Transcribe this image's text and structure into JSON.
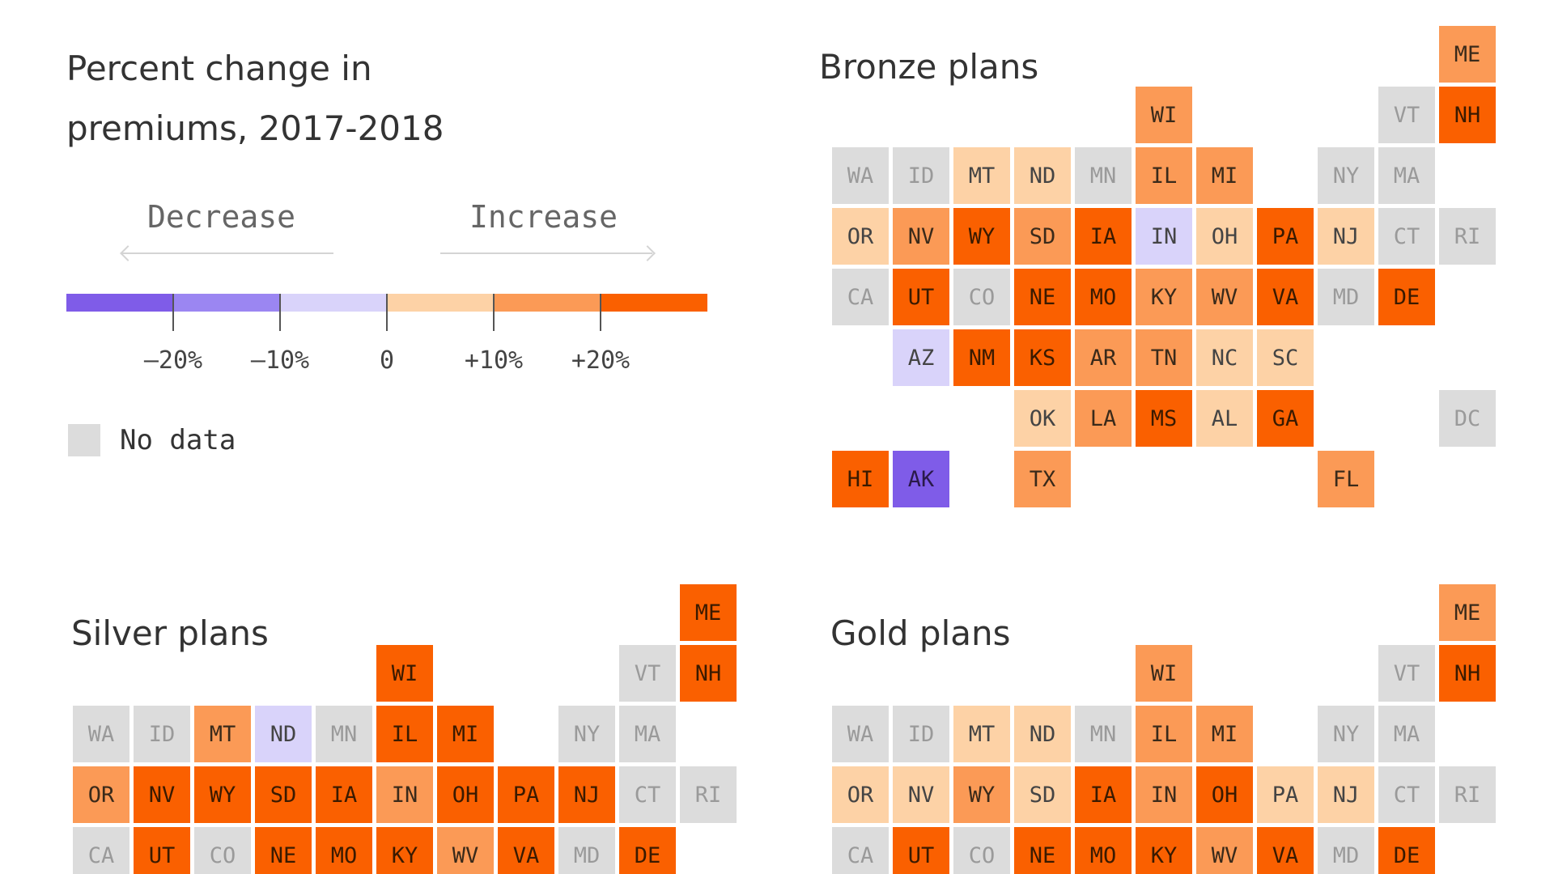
{
  "title": "Percent change in premiums, 2017-2018",
  "legend": {
    "decrease_label": "Decrease",
    "increase_label": "Increase",
    "ticks": [
      "–20%",
      "–10%",
      "0",
      "+10%",
      "+20%"
    ],
    "bins": [
      {
        "color": "#7f5ce8"
      },
      {
        "color": "#9b86f2"
      },
      {
        "color": "#d9d3fa"
      },
      {
        "color": "#fdd2a6"
      },
      {
        "color": "#fb9a56"
      },
      {
        "color": "#fa6000"
      }
    ],
    "no_data_label": "No data",
    "no_data_color": "#dcdcdc"
  },
  "maps": [
    {
      "name": "Bronze plans",
      "states": [
        {
          "code": "ME",
          "row": 0,
          "col": 10,
          "bin": 5
        },
        {
          "code": "WI",
          "row": 1,
          "col": 5,
          "bin": 5
        },
        {
          "code": "VT",
          "row": 1,
          "col": 9,
          "bin": null
        },
        {
          "code": "NH",
          "row": 1,
          "col": 10,
          "bin": 6
        },
        {
          "code": "WA",
          "row": 2,
          "col": 0,
          "bin": null
        },
        {
          "code": "ID",
          "row": 2,
          "col": 1,
          "bin": null
        },
        {
          "code": "MT",
          "row": 2,
          "col": 2,
          "bin": 4
        },
        {
          "code": "ND",
          "row": 2,
          "col": 3,
          "bin": 4
        },
        {
          "code": "MN",
          "row": 2,
          "col": 4,
          "bin": null
        },
        {
          "code": "IL",
          "row": 2,
          "col": 5,
          "bin": 5
        },
        {
          "code": "MI",
          "row": 2,
          "col": 6,
          "bin": 5
        },
        {
          "code": "NY",
          "row": 2,
          "col": 8,
          "bin": null
        },
        {
          "code": "MA",
          "row": 2,
          "col": 9,
          "bin": null
        },
        {
          "code": "OR",
          "row": 3,
          "col": 0,
          "bin": 4
        },
        {
          "code": "NV",
          "row": 3,
          "col": 1,
          "bin": 5
        },
        {
          "code": "WY",
          "row": 3,
          "col": 2,
          "bin": 6
        },
        {
          "code": "SD",
          "row": 3,
          "col": 3,
          "bin": 5
        },
        {
          "code": "IA",
          "row": 3,
          "col": 4,
          "bin": 6
        },
        {
          "code": "IN",
          "row": 3,
          "col": 5,
          "bin": 3
        },
        {
          "code": "OH",
          "row": 3,
          "col": 6,
          "bin": 4
        },
        {
          "code": "PA",
          "row": 3,
          "col": 7,
          "bin": 6
        },
        {
          "code": "NJ",
          "row": 3,
          "col": 8,
          "bin": 4
        },
        {
          "code": "CT",
          "row": 3,
          "col": 9,
          "bin": null
        },
        {
          "code": "RI",
          "row": 3,
          "col": 10,
          "bin": null
        },
        {
          "code": "CA",
          "row": 4,
          "col": 0,
          "bin": null
        },
        {
          "code": "UT",
          "row": 4,
          "col": 1,
          "bin": 6
        },
        {
          "code": "CO",
          "row": 4,
          "col": 2,
          "bin": null
        },
        {
          "code": "NE",
          "row": 4,
          "col": 3,
          "bin": 6
        },
        {
          "code": "MO",
          "row": 4,
          "col": 4,
          "bin": 6
        },
        {
          "code": "KY",
          "row": 4,
          "col": 5,
          "bin": 5
        },
        {
          "code": "WV",
          "row": 4,
          "col": 6,
          "bin": 5
        },
        {
          "code": "VA",
          "row": 4,
          "col": 7,
          "bin": 6
        },
        {
          "code": "MD",
          "row": 4,
          "col": 8,
          "bin": null
        },
        {
          "code": "DE",
          "row": 4,
          "col": 9,
          "bin": 6
        },
        {
          "code": "AZ",
          "row": 5,
          "col": 1,
          "bin": 3
        },
        {
          "code": "NM",
          "row": 5,
          "col": 2,
          "bin": 6
        },
        {
          "code": "KS",
          "row": 5,
          "col": 3,
          "bin": 6
        },
        {
          "code": "AR",
          "row": 5,
          "col": 4,
          "bin": 5
        },
        {
          "code": "TN",
          "row": 5,
          "col": 5,
          "bin": 5
        },
        {
          "code": "NC",
          "row": 5,
          "col": 6,
          "bin": 4
        },
        {
          "code": "SC",
          "row": 5,
          "col": 7,
          "bin": 4
        },
        {
          "code": "OK",
          "row": 6,
          "col": 3,
          "bin": 4
        },
        {
          "code": "LA",
          "row": 6,
          "col": 4,
          "bin": 5
        },
        {
          "code": "MS",
          "row": 6,
          "col": 5,
          "bin": 6
        },
        {
          "code": "AL",
          "row": 6,
          "col": 6,
          "bin": 4
        },
        {
          "code": "GA",
          "row": 6,
          "col": 7,
          "bin": 6
        },
        {
          "code": "DC",
          "row": 6,
          "col": 10,
          "bin": null
        },
        {
          "code": "HI",
          "row": 7,
          "col": 0,
          "bin": 6
        },
        {
          "code": "AK",
          "row": 7,
          "col": 1,
          "bin": 1
        },
        {
          "code": "TX",
          "row": 7,
          "col": 3,
          "bin": 5
        },
        {
          "code": "FL",
          "row": 7,
          "col": 8,
          "bin": 5
        }
      ]
    },
    {
      "name": "Silver plans",
      "states": [
        {
          "code": "ME",
          "row": 0,
          "col": 10,
          "bin": 6
        },
        {
          "code": "WI",
          "row": 1,
          "col": 5,
          "bin": 6
        },
        {
          "code": "VT",
          "row": 1,
          "col": 9,
          "bin": null
        },
        {
          "code": "NH",
          "row": 1,
          "col": 10,
          "bin": 6
        },
        {
          "code": "WA",
          "row": 2,
          "col": 0,
          "bin": null
        },
        {
          "code": "ID",
          "row": 2,
          "col": 1,
          "bin": null
        },
        {
          "code": "MT",
          "row": 2,
          "col": 2,
          "bin": 5
        },
        {
          "code": "ND",
          "row": 2,
          "col": 3,
          "bin": 3
        },
        {
          "code": "MN",
          "row": 2,
          "col": 4,
          "bin": null
        },
        {
          "code": "IL",
          "row": 2,
          "col": 5,
          "bin": 6
        },
        {
          "code": "MI",
          "row": 2,
          "col": 6,
          "bin": 6
        },
        {
          "code": "NY",
          "row": 2,
          "col": 8,
          "bin": null
        },
        {
          "code": "MA",
          "row": 2,
          "col": 9,
          "bin": null
        },
        {
          "code": "OR",
          "row": 3,
          "col": 0,
          "bin": 5
        },
        {
          "code": "NV",
          "row": 3,
          "col": 1,
          "bin": 6
        },
        {
          "code": "WY",
          "row": 3,
          "col": 2,
          "bin": 6
        },
        {
          "code": "SD",
          "row": 3,
          "col": 3,
          "bin": 6
        },
        {
          "code": "IA",
          "row": 3,
          "col": 4,
          "bin": 6
        },
        {
          "code": "IN",
          "row": 3,
          "col": 5,
          "bin": 5
        },
        {
          "code": "OH",
          "row": 3,
          "col": 6,
          "bin": 6
        },
        {
          "code": "PA",
          "row": 3,
          "col": 7,
          "bin": 6
        },
        {
          "code": "NJ",
          "row": 3,
          "col": 8,
          "bin": 6
        },
        {
          "code": "CT",
          "row": 3,
          "col": 9,
          "bin": null
        },
        {
          "code": "RI",
          "row": 3,
          "col": 10,
          "bin": null
        },
        {
          "code": "CA",
          "row": 4,
          "col": 0,
          "bin": null
        },
        {
          "code": "UT",
          "row": 4,
          "col": 1,
          "bin": 6
        },
        {
          "code": "CO",
          "row": 4,
          "col": 2,
          "bin": null
        },
        {
          "code": "NE",
          "row": 4,
          "col": 3,
          "bin": 6
        },
        {
          "code": "MO",
          "row": 4,
          "col": 4,
          "bin": 6
        },
        {
          "code": "KY",
          "row": 4,
          "col": 5,
          "bin": 6
        },
        {
          "code": "WV",
          "row": 4,
          "col": 6,
          "bin": 5
        },
        {
          "code": "VA",
          "row": 4,
          "col": 7,
          "bin": 6
        },
        {
          "code": "MD",
          "row": 4,
          "col": 8,
          "bin": null
        },
        {
          "code": "DE",
          "row": 4,
          "col": 9,
          "bin": 6
        }
      ]
    },
    {
      "name": "Gold plans",
      "states": [
        {
          "code": "ME",
          "row": 0,
          "col": 10,
          "bin": 5
        },
        {
          "code": "WI",
          "row": 1,
          "col": 5,
          "bin": 5
        },
        {
          "code": "VT",
          "row": 1,
          "col": 9,
          "bin": null
        },
        {
          "code": "NH",
          "row": 1,
          "col": 10,
          "bin": 6
        },
        {
          "code": "WA",
          "row": 2,
          "col": 0,
          "bin": null
        },
        {
          "code": "ID",
          "row": 2,
          "col": 1,
          "bin": null
        },
        {
          "code": "MT",
          "row": 2,
          "col": 2,
          "bin": 4
        },
        {
          "code": "ND",
          "row": 2,
          "col": 3,
          "bin": 4
        },
        {
          "code": "MN",
          "row": 2,
          "col": 4,
          "bin": null
        },
        {
          "code": "IL",
          "row": 2,
          "col": 5,
          "bin": 5
        },
        {
          "code": "MI",
          "row": 2,
          "col": 6,
          "bin": 5
        },
        {
          "code": "NY",
          "row": 2,
          "col": 8,
          "bin": null
        },
        {
          "code": "MA",
          "row": 2,
          "col": 9,
          "bin": null
        },
        {
          "code": "OR",
          "row": 3,
          "col": 0,
          "bin": 4
        },
        {
          "code": "NV",
          "row": 3,
          "col": 1,
          "bin": 4
        },
        {
          "code": "WY",
          "row": 3,
          "col": 2,
          "bin": 5
        },
        {
          "code": "SD",
          "row": 3,
          "col": 3,
          "bin": 4
        },
        {
          "code": "IA",
          "row": 3,
          "col": 4,
          "bin": 6
        },
        {
          "code": "IN",
          "row": 3,
          "col": 5,
          "bin": 5
        },
        {
          "code": "OH",
          "row": 3,
          "col": 6,
          "bin": 6
        },
        {
          "code": "PA",
          "row": 3,
          "col": 7,
          "bin": 4
        },
        {
          "code": "NJ",
          "row": 3,
          "col": 8,
          "bin": 4
        },
        {
          "code": "CT",
          "row": 3,
          "col": 9,
          "bin": null
        },
        {
          "code": "RI",
          "row": 3,
          "col": 10,
          "bin": null
        },
        {
          "code": "CA",
          "row": 4,
          "col": 0,
          "bin": null
        },
        {
          "code": "UT",
          "row": 4,
          "col": 1,
          "bin": 6
        },
        {
          "code": "CO",
          "row": 4,
          "col": 2,
          "bin": null
        },
        {
          "code": "NE",
          "row": 4,
          "col": 3,
          "bin": 6
        },
        {
          "code": "MO",
          "row": 4,
          "col": 4,
          "bin": 6
        },
        {
          "code": "KY",
          "row": 4,
          "col": 5,
          "bin": 6
        },
        {
          "code": "WV",
          "row": 4,
          "col": 6,
          "bin": 5
        },
        {
          "code": "VA",
          "row": 4,
          "col": 7,
          "bin": 6
        },
        {
          "code": "MD",
          "row": 4,
          "col": 8,
          "bin": null
        },
        {
          "code": "DE",
          "row": 4,
          "col": 9,
          "bin": 6
        }
      ]
    }
  ]
}
